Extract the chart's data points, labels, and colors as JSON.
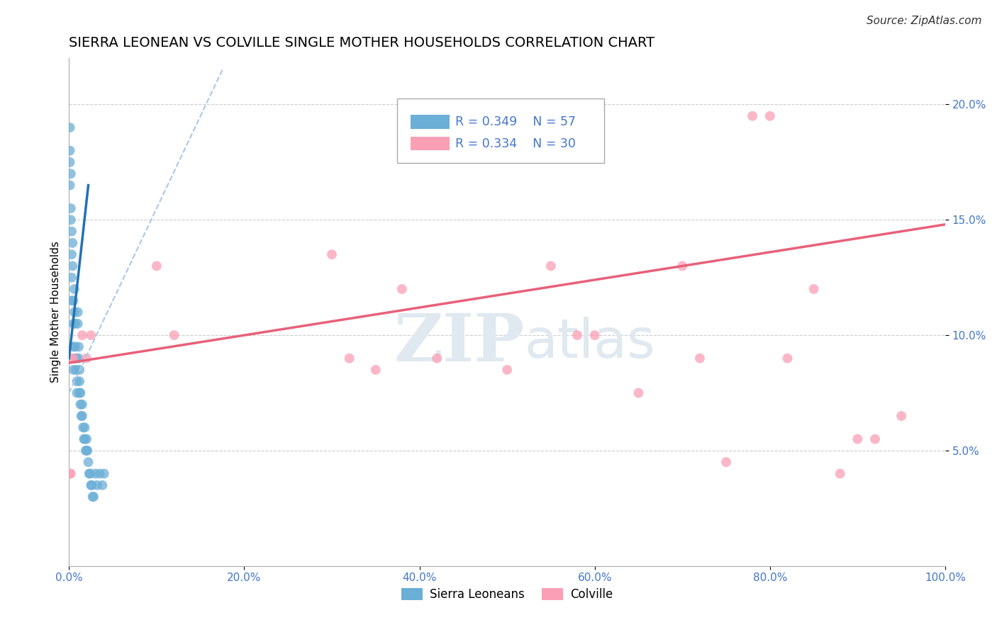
{
  "title": "SIERRA LEONEAN VS COLVILLE SINGLE MOTHER HOUSEHOLDS CORRELATION CHART",
  "source": "Source: ZipAtlas.com",
  "ylabel": "Single Mother Households",
  "legend_labels": [
    "Sierra Leoneans",
    "Colville"
  ],
  "blue_R": 0.349,
  "blue_N": 57,
  "pink_R": 0.334,
  "pink_N": 30,
  "blue_color": "#6baed6",
  "pink_color": "#fa9fb5",
  "blue_line_color": "#2171b5",
  "pink_line_color": "#e8607a",
  "blue_dashed_color": "#aac8e8",
  "title_fontsize": 14,
  "source_fontsize": 11,
  "tick_fontsize": 11,
  "ylabel_fontsize": 11,
  "tick_label_color": "#4477CC",
  "legend_color": "#4477CC",
  "blue_x": [
    0.001,
    0.001,
    0.001,
    0.001,
    0.002,
    0.002,
    0.002,
    0.003,
    0.003,
    0.003,
    0.003,
    0.004,
    0.004,
    0.005,
    0.005,
    0.005,
    0.005,
    0.006,
    0.006,
    0.007,
    0.007,
    0.008,
    0.008,
    0.009,
    0.009,
    0.01,
    0.01,
    0.011,
    0.011,
    0.012,
    0.012,
    0.012,
    0.013,
    0.013,
    0.014,
    0.015,
    0.015,
    0.016,
    0.017,
    0.018,
    0.018,
    0.019,
    0.02,
    0.02,
    0.021,
    0.022,
    0.023,
    0.024,
    0.025,
    0.026,
    0.027,
    0.028,
    0.03,
    0.032,
    0.035,
    0.038,
    0.04
  ],
  "blue_y": [
    0.175,
    0.18,
    0.19,
    0.165,
    0.155,
    0.17,
    0.15,
    0.145,
    0.135,
    0.125,
    0.115,
    0.14,
    0.13,
    0.115,
    0.105,
    0.095,
    0.085,
    0.12,
    0.11,
    0.105,
    0.095,
    0.09,
    0.085,
    0.08,
    0.075,
    0.11,
    0.105,
    0.095,
    0.09,
    0.085,
    0.08,
    0.075,
    0.075,
    0.07,
    0.065,
    0.07,
    0.065,
    0.06,
    0.055,
    0.06,
    0.055,
    0.05,
    0.055,
    0.05,
    0.05,
    0.045,
    0.04,
    0.04,
    0.035,
    0.035,
    0.03,
    0.03,
    0.04,
    0.035,
    0.04,
    0.035,
    0.04
  ],
  "pink_x": [
    0.001,
    0.002,
    0.002,
    0.005,
    0.015,
    0.02,
    0.025,
    0.1,
    0.12,
    0.3,
    0.32,
    0.35,
    0.38,
    0.42,
    0.5,
    0.55,
    0.58,
    0.6,
    0.65,
    0.7,
    0.72,
    0.75,
    0.78,
    0.8,
    0.82,
    0.85,
    0.88,
    0.9,
    0.92,
    0.95
  ],
  "pink_y": [
    0.04,
    0.04,
    0.09,
    0.09,
    0.1,
    0.09,
    0.1,
    0.13,
    0.1,
    0.135,
    0.09,
    0.085,
    0.12,
    0.09,
    0.085,
    0.13,
    0.1,
    0.1,
    0.075,
    0.13,
    0.09,
    0.045,
    0.195,
    0.195,
    0.09,
    0.12,
    0.04,
    0.055,
    0.055,
    0.065
  ],
  "xlim": [
    0.0,
    1.0
  ],
  "ylim": [
    0.0,
    0.22
  ],
  "xticks": [
    0.0,
    0.2,
    0.4,
    0.6,
    0.8,
    1.0
  ],
  "xtick_labels": [
    "0.0%",
    "20.0%",
    "40.0%",
    "60.0%",
    "80.0%",
    "100.0%"
  ],
  "yticks": [
    0.05,
    0.1,
    0.15,
    0.2
  ],
  "ytick_labels": [
    "5.0%",
    "10.0%",
    "15.0%",
    "20.0%"
  ],
  "grid_color": "#cccccc",
  "grid_style": "--",
  "watermark_color": "#e0e8f0"
}
